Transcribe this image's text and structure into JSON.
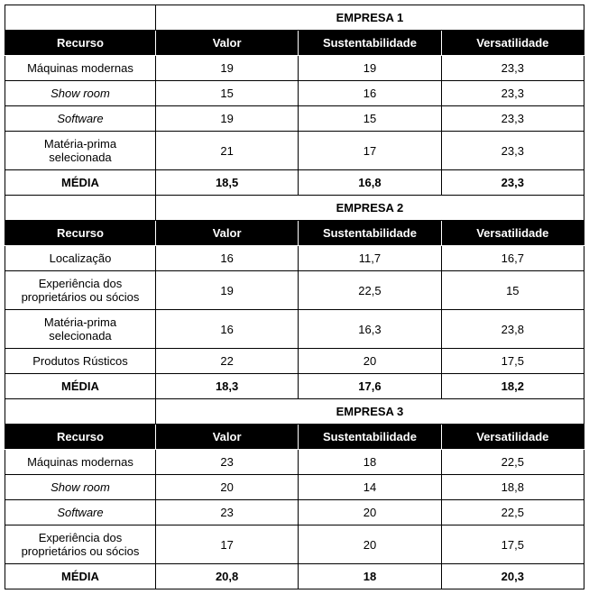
{
  "columns": {
    "recurso": "Recurso",
    "valor": "Valor",
    "sustentabilidade": "Sustentabilidade",
    "versatilidade": "Versatilidade"
  },
  "media_label": "MÉDIA",
  "companies": [
    {
      "title": "EMPRESA 1",
      "rows": [
        {
          "label": "Máquinas modernas",
          "italic": false,
          "valor": "19",
          "sust": "19",
          "vers": "23,3"
        },
        {
          "label": "Show room",
          "italic": true,
          "valor": "15",
          "sust": "16",
          "vers": "23,3"
        },
        {
          "label": "Software",
          "italic": true,
          "valor": "19",
          "sust": "15",
          "vers": "23,3"
        },
        {
          "label": "Matéria-prima selecionada",
          "italic": false,
          "valor": "21",
          "sust": "17",
          "vers": "23,3"
        }
      ],
      "media": {
        "valor": "18,5",
        "sust": "16,8",
        "vers": "23,3"
      }
    },
    {
      "title": "EMPRESA 2",
      "rows": [
        {
          "label": "Localização",
          "italic": false,
          "valor": "16",
          "sust": "11,7",
          "vers": "16,7"
        },
        {
          "label": "Experiência dos proprietários ou sócios",
          "italic": false,
          "valor": "19",
          "sust": "22,5",
          "vers": "15"
        },
        {
          "label": "Matéria-prima selecionada",
          "italic": false,
          "valor": "16",
          "sust": "16,3",
          "vers": "23,8"
        },
        {
          "label": "Produtos Rústicos",
          "italic": false,
          "valor": "22",
          "sust": "20",
          "vers": "17,5"
        }
      ],
      "media": {
        "valor": "18,3",
        "sust": "17,6",
        "vers": "18,2"
      }
    },
    {
      "title": "EMPRESA 3",
      "rows": [
        {
          "label": "Máquinas modernas",
          "italic": false,
          "valor": "23",
          "sust": "18",
          "vers": "22,5"
        },
        {
          "label": "Show room",
          "italic": true,
          "valor": "20",
          "sust": "14",
          "vers": "18,8"
        },
        {
          "label": "Software",
          "italic": true,
          "valor": "23",
          "sust": "20",
          "vers": "22,5"
        },
        {
          "label": "Experiência dos proprietários ou sócios",
          "italic": false,
          "valor": "17",
          "sust": "20",
          "vers": "17,5"
        }
      ],
      "media": {
        "valor": "20,8",
        "sust": "18",
        "vers": "20,3"
      }
    }
  ]
}
